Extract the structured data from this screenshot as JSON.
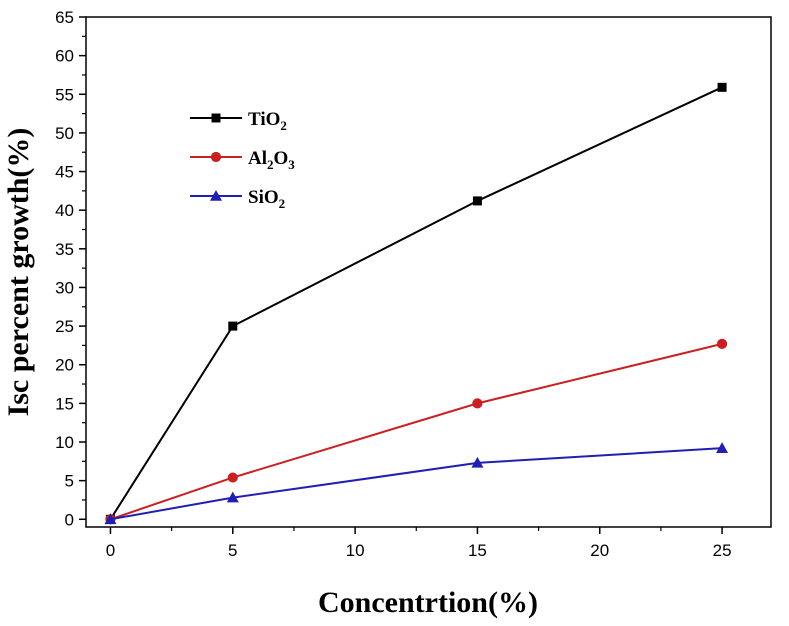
{
  "chart_data": {
    "type": "line",
    "x": [
      0,
      5,
      15,
      25
    ],
    "xlabel": "Concentrtion(%)",
    "ylabel": "Isc percent growth(%)",
    "xlim": [
      -1,
      27
    ],
    "ylim": [
      -1,
      65
    ],
    "xticks": [
      0,
      5,
      10,
      15,
      20,
      25
    ],
    "yticks": [
      0,
      5,
      10,
      15,
      20,
      25,
      30,
      35,
      40,
      45,
      50,
      55,
      60,
      65
    ],
    "grid": false,
    "legend_position": "top-left",
    "series": [
      {
        "key": "tio2",
        "name": "TiO2",
        "legend": {
          "base": "TiO",
          "sub": "2",
          "tail": "",
          "sub2": ""
        },
        "color": "#000000",
        "marker": "square",
        "values": [
          0,
          25,
          41.2,
          55.9
        ]
      },
      {
        "key": "al2o3",
        "name": "Al2O3",
        "legend": {
          "base": "Al",
          "sub": "2",
          "tail": "O",
          "sub2": "3"
        },
        "color": "#cc1f1f",
        "marker": "circle",
        "values": [
          0,
          5.4,
          15,
          22.7
        ]
      },
      {
        "key": "sio2",
        "name": "SiO2",
        "legend": {
          "base": "SiO",
          "sub": "2",
          "tail": "",
          "sub2": ""
        },
        "color": "#1f1fb4",
        "marker": "triangle",
        "values": [
          0,
          2.8,
          7.3,
          9.2
        ]
      }
    ]
  }
}
